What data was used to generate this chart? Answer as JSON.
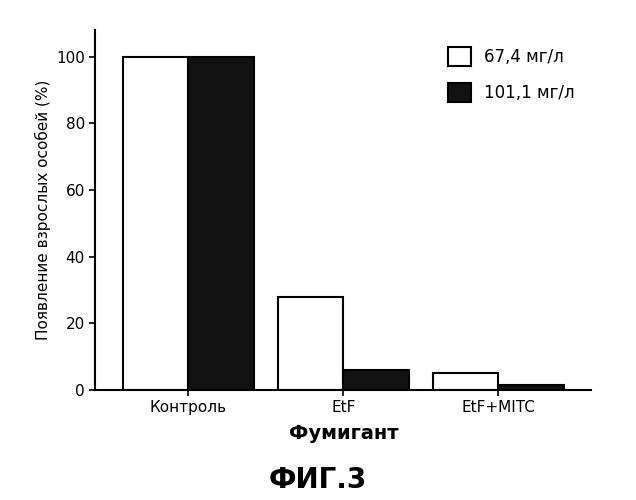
{
  "categories": [
    "Контроль",
    "EtF",
    "EtF+MITC"
  ],
  "values_white": [
    100,
    28,
    5
  ],
  "values_black": [
    100,
    6,
    1.5
  ],
  "bar_width": 0.42,
  "bar_color_white": "#ffffff",
  "bar_color_black": "#111111",
  "bar_edgecolor": "#000000",
  "xlabel": "Фумигант",
  "ylabel": "Появление взрослых особей (%)",
  "ylim": [
    0,
    108
  ],
  "yticks": [
    0,
    20,
    40,
    60,
    80,
    100
  ],
  "legend_labels": [
    "67,4 мг/л",
    "101,1 мг/л"
  ],
  "figure_title": "ФИГ.3",
  "background_color": "#ffffff",
  "xlabel_fontsize": 14,
  "ylabel_fontsize": 11,
  "tick_fontsize": 11,
  "legend_fontsize": 12,
  "figure_title_fontsize": 20
}
